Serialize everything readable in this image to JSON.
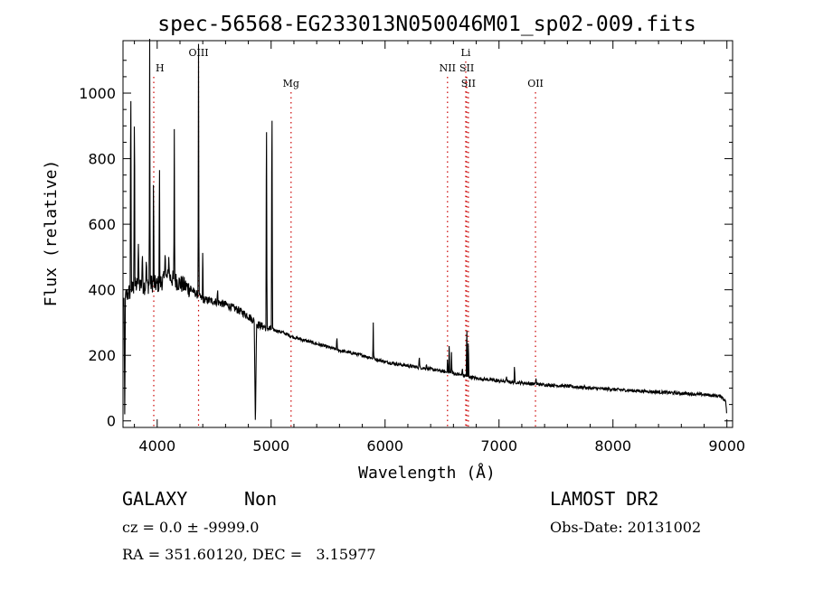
{
  "chart_data": {
    "type": "line",
    "title": "spec-56568-EG233013N050046M01_sp02-009.fits",
    "xlabel": "Wavelength (Å)",
    "ylabel": "Flux (relative)",
    "xlim": [
      3700,
      9050
    ],
    "ylim": [
      -20,
      1160
    ],
    "xticks": [
      4000,
      5000,
      6000,
      7000,
      8000,
      9000
    ],
    "yticks": [
      0,
      200,
      400,
      600,
      800,
      1000
    ],
    "grid": false,
    "line_color": "#000000",
    "marker_color": "#cc0000",
    "continuum": [
      {
        "x": 3700,
        "y": 360
      },
      {
        "x": 3720,
        "y": 380
      },
      {
        "x": 3750,
        "y": 390
      },
      {
        "x": 3800,
        "y": 410
      },
      {
        "x": 3850,
        "y": 420
      },
      {
        "x": 3900,
        "y": 410
      },
      {
        "x": 3950,
        "y": 420
      },
      {
        "x": 4000,
        "y": 415
      },
      {
        "x": 4100,
        "y": 440
      },
      {
        "x": 4200,
        "y": 420
      },
      {
        "x": 4300,
        "y": 400
      },
      {
        "x": 4400,
        "y": 370
      },
      {
        "x": 4500,
        "y": 365
      },
      {
        "x": 4600,
        "y": 355
      },
      {
        "x": 4700,
        "y": 340
      },
      {
        "x": 4800,
        "y": 320
      },
      {
        "x": 4880,
        "y": 295
      },
      {
        "x": 4950,
        "y": 285
      },
      {
        "x": 5000,
        "y": 280
      },
      {
        "x": 5100,
        "y": 270
      },
      {
        "x": 5200,
        "y": 255
      },
      {
        "x": 5400,
        "y": 235
      },
      {
        "x": 5600,
        "y": 215
      },
      {
        "x": 5800,
        "y": 200
      },
      {
        "x": 6000,
        "y": 180
      },
      {
        "x": 6200,
        "y": 168
      },
      {
        "x": 6400,
        "y": 158
      },
      {
        "x": 6600,
        "y": 145
      },
      {
        "x": 6800,
        "y": 130
      },
      {
        "x": 7000,
        "y": 122
      },
      {
        "x": 7200,
        "y": 116
      },
      {
        "x": 7400,
        "y": 110
      },
      {
        "x": 7600,
        "y": 106
      },
      {
        "x": 7800,
        "y": 100
      },
      {
        "x": 8000,
        "y": 96
      },
      {
        "x": 8200,
        "y": 92
      },
      {
        "x": 8400,
        "y": 88
      },
      {
        "x": 8600,
        "y": 84
      },
      {
        "x": 8800,
        "y": 80
      },
      {
        "x": 8950,
        "y": 75
      },
      {
        "x": 8990,
        "y": 60
      },
      {
        "x": 9000,
        "y": 10
      }
    ],
    "features": [
      {
        "x": 3715,
        "y": 20,
        "w": 6
      },
      {
        "x": 3768,
        "y": 1120,
        "w": 5
      },
      {
        "x": 3800,
        "y": 1020,
        "w": 5
      },
      {
        "x": 3835,
        "y": 540,
        "w": 6
      },
      {
        "x": 3870,
        "y": 520,
        "w": 6
      },
      {
        "x": 3905,
        "y": 500,
        "w": 6
      },
      {
        "x": 3934,
        "y": 1190,
        "w": 4
      },
      {
        "x": 3968,
        "y": 820,
        "w": 4
      },
      {
        "x": 4020,
        "y": 880,
        "w": 4
      },
      {
        "x": 4070,
        "y": 520,
        "w": 6
      },
      {
        "x": 4102,
        "y": 500,
        "w": 6
      },
      {
        "x": 4150,
        "y": 890,
        "w": 4
      },
      {
        "x": 4363,
        "y": 1150,
        "w": 4
      },
      {
        "x": 4400,
        "y": 560,
        "w": 4
      },
      {
        "x": 4530,
        "y": 410,
        "w": 4
      },
      {
        "x": 4862,
        "y": -30,
        "w": 10
      },
      {
        "x": 4959,
        "y": 1030,
        "w": 5
      },
      {
        "x": 5007,
        "y": 1075,
        "w": 5
      },
      {
        "x": 5577,
        "y": 260,
        "w": 5
      },
      {
        "x": 5896,
        "y": 300,
        "w": 4
      },
      {
        "x": 6300,
        "y": 200,
        "w": 5
      },
      {
        "x": 6363,
        "y": 175,
        "w": 5
      },
      {
        "x": 6548,
        "y": 200,
        "w": 4
      },
      {
        "x": 6563,
        "y": 255,
        "w": 4
      },
      {
        "x": 6583,
        "y": 210,
        "w": 4
      },
      {
        "x": 6678,
        "y": 165,
        "w": 4
      },
      {
        "x": 6717,
        "y": 320,
        "w": 4
      },
      {
        "x": 6731,
        "y": 270,
        "w": 4
      },
      {
        "x": 7065,
        "y": 140,
        "w": 4
      },
      {
        "x": 7136,
        "y": 180,
        "w": 4
      },
      {
        "x": 7325,
        "y": 135,
        "w": 4
      },
      {
        "x": 7751,
        "y": 110,
        "w": 4
      }
    ],
    "lines": [
      {
        "x": 3970,
        "label": "H",
        "row": 1,
        "color": "#cc0000"
      },
      {
        "x": 4363,
        "label": "OIII",
        "row": 0,
        "color": "#cc0000"
      },
      {
        "x": 5175,
        "label": "Mg",
        "row": 2,
        "color": "#cc0000"
      },
      {
        "x": 6548,
        "label": "NII",
        "row": 1,
        "color": "#cc0000"
      },
      {
        "x": 6708,
        "label": "Li",
        "row": 0,
        "color": "#cc0000"
      },
      {
        "x": 6717,
        "label": "SII",
        "row": 1,
        "color": "#cc0000"
      },
      {
        "x": 6731,
        "label": "SII",
        "row": 2,
        "color": "#cc0000"
      },
      {
        "x": 7320,
        "label": "OII",
        "row": 2,
        "color": "#cc0000"
      }
    ]
  },
  "info": {
    "class": "GALAXY",
    "subclass": "Non",
    "cz": "cz = 0.0 ± -9999.0",
    "coords": "RA = 351.60120, DEC =   3.15977",
    "survey": "LAMOST DR2",
    "obs_date": "Obs-Date: 20131002"
  }
}
